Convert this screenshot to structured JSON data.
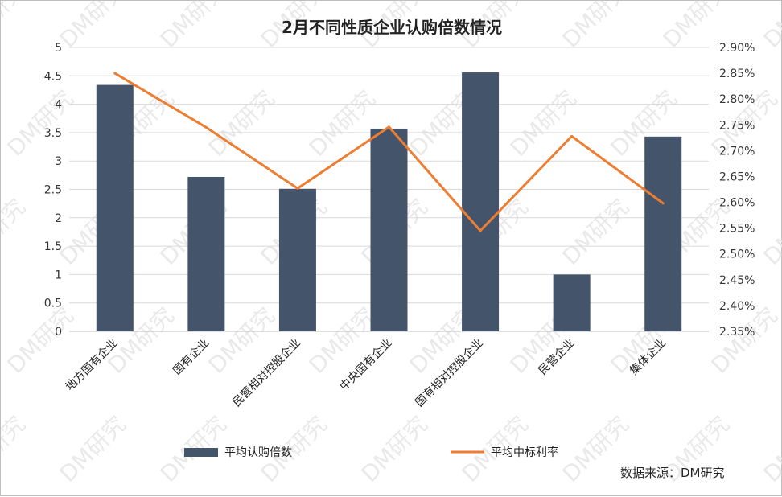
{
  "chart_data": {
    "type": "bar",
    "title": "2月不同性质企业认购倍数情况",
    "categories": [
      "地方国有企业",
      "国有企业",
      "民营相对控股企业",
      "中央国有企业",
      "国有相对控股企业",
      "民营企业",
      "集体企业"
    ],
    "series": [
      {
        "name": "平均认购倍数",
        "type": "bar",
        "axis": "left",
        "color": "#44546a",
        "values": [
          4.34,
          2.72,
          2.51,
          3.57,
          4.56,
          1.0,
          3.43
        ]
      },
      {
        "name": "平均中标利率",
        "type": "line",
        "axis": "right",
        "color": "#ed7d31",
        "values": [
          2.85,
          2.745,
          2.627,
          2.746,
          2.545,
          2.728,
          2.598
        ]
      }
    ],
    "y_left": {
      "min": 0,
      "max": 5,
      "step": 0.5,
      "tick_labels": [
        "0",
        "0.5",
        "1",
        "1.5",
        "2",
        "2.5",
        "3",
        "3.5",
        "4",
        "4.5",
        "5"
      ]
    },
    "y_right": {
      "min": 2.35,
      "max": 2.9,
      "step": 0.05,
      "tick_labels": [
        "2.35%",
        "2.40%",
        "2.45%",
        "2.50%",
        "2.55%",
        "2.60%",
        "2.65%",
        "2.70%",
        "2.75%",
        "2.80%",
        "2.85%",
        "2.90%"
      ]
    },
    "grid": true,
    "legend": "bottom",
    "source": "数据来源：DM研究",
    "watermark": "DM研究"
  }
}
